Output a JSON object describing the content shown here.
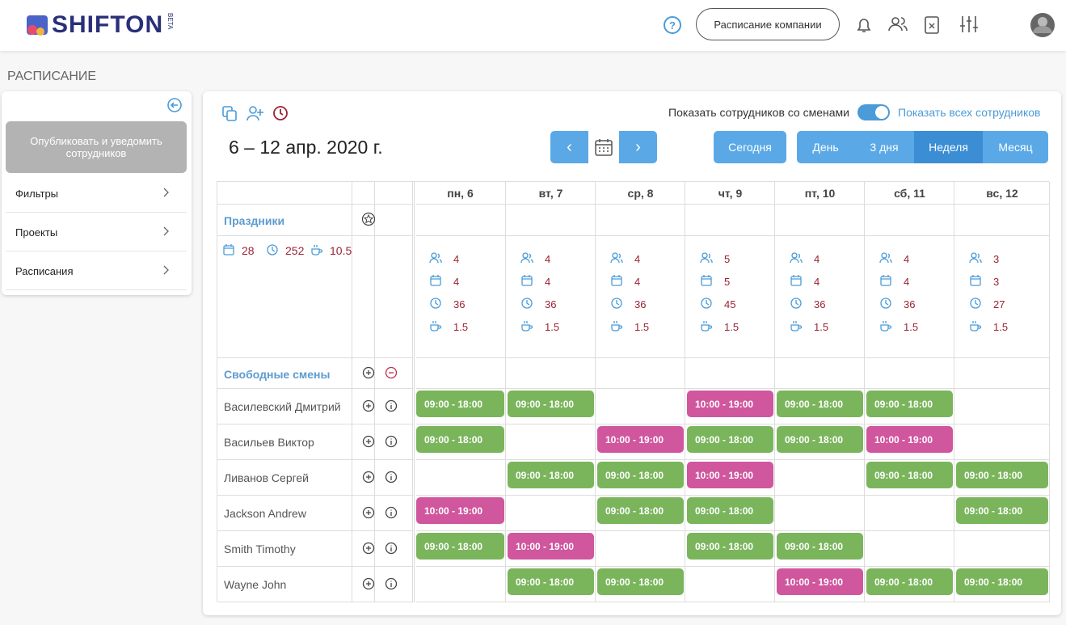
{
  "header": {
    "logo": "SHIFTON",
    "badge": "BETA",
    "company_button": "Расписание компании"
  },
  "page_title": "РАСПИСАНИЕ",
  "sidebar": {
    "publish_button": "Опубликовать и уведомить сотрудников",
    "menu": [
      "Фильтры",
      "Проекты",
      "Расписания"
    ]
  },
  "toolbar": {
    "toggle_label": "Показать сотрудников со сменами",
    "toggle_link": "Показать всех сотрудников",
    "date_range": "6 – 12 апр. 2020 г.",
    "prev": "‹",
    "next": "›",
    "today": "Сегодня",
    "views": [
      "День",
      "3 дня",
      "Неделя",
      "Месяц"
    ],
    "active_view": 2
  },
  "table": {
    "days": [
      "пн, 6",
      "вт, 7",
      "ср, 8",
      "чт, 9",
      "пт, 10",
      "сб, 11",
      "вс, 12"
    ],
    "holidays_label": "Праздники",
    "totals": {
      "shifts": 28,
      "hours": 252,
      "breaks": 10.5
    },
    "day_stats": [
      {
        "employees": 4,
        "shifts": 4,
        "hours": 36,
        "breaks": 1.5
      },
      {
        "employees": 4,
        "shifts": 4,
        "hours": 36,
        "breaks": 1.5
      },
      {
        "employees": 4,
        "shifts": 4,
        "hours": 36,
        "breaks": 1.5
      },
      {
        "employees": 5,
        "shifts": 5,
        "hours": 45,
        "breaks": 1.5
      },
      {
        "employees": 4,
        "shifts": 4,
        "hours": 36,
        "breaks": 1.5
      },
      {
        "employees": 4,
        "shifts": 4,
        "hours": 36,
        "breaks": 1.5
      },
      {
        "employees": 3,
        "shifts": 3,
        "hours": 27,
        "breaks": 1.5
      }
    ],
    "free_shifts_label": "Свободные смены",
    "employees": [
      {
        "name": "Василевский Дмитрий",
        "shifts": [
          {
            "time": "09:00 - 18:00",
            "color": "#7ab55c"
          },
          {
            "time": "09:00 - 18:00",
            "color": "#7ab55c"
          },
          null,
          {
            "time": "10:00 - 19:00",
            "color": "#d0569e"
          },
          {
            "time": "09:00 - 18:00",
            "color": "#7ab55c"
          },
          {
            "time": "09:00 - 18:00",
            "color": "#7ab55c"
          },
          null
        ]
      },
      {
        "name": "Васильев Виктор",
        "shifts": [
          {
            "time": "09:00 - 18:00",
            "color": "#7ab55c"
          },
          null,
          {
            "time": "10:00 - 19:00",
            "color": "#d0569e"
          },
          {
            "time": "09:00 - 18:00",
            "color": "#7ab55c"
          },
          {
            "time": "09:00 - 18:00",
            "color": "#7ab55c"
          },
          {
            "time": "10:00 - 19:00",
            "color": "#d0569e"
          },
          null
        ]
      },
      {
        "name": "Ливанов Сергей",
        "shifts": [
          null,
          {
            "time": "09:00 - 18:00",
            "color": "#7ab55c"
          },
          {
            "time": "09:00 - 18:00",
            "color": "#7ab55c"
          },
          {
            "time": "10:00 - 19:00",
            "color": "#d0569e"
          },
          null,
          {
            "time": "09:00 - 18:00",
            "color": "#7ab55c"
          },
          {
            "time": "09:00 - 18:00",
            "color": "#7ab55c"
          }
        ]
      },
      {
        "name": "Jackson Andrew",
        "shifts": [
          {
            "time": "10:00 - 19:00",
            "color": "#d0569e"
          },
          null,
          {
            "time": "09:00 - 18:00",
            "color": "#7ab55c"
          },
          {
            "time": "09:00 - 18:00",
            "color": "#7ab55c"
          },
          null,
          null,
          {
            "time": "09:00 - 18:00",
            "color": "#7ab55c"
          }
        ]
      },
      {
        "name": "Smith Timothy",
        "shifts": [
          {
            "time": "09:00 - 18:00",
            "color": "#7ab55c"
          },
          {
            "time": "10:00 - 19:00",
            "color": "#d0569e"
          },
          null,
          {
            "time": "09:00 - 18:00",
            "color": "#7ab55c"
          },
          {
            "time": "09:00 - 18:00",
            "color": "#7ab55c"
          },
          null,
          null
        ]
      },
      {
        "name": "Wayne John",
        "shifts": [
          null,
          {
            "time": "09:00 - 18:00",
            "color": "#7ab55c"
          },
          {
            "time": "09:00 - 18:00",
            "color": "#7ab55c"
          },
          null,
          {
            "time": "10:00 - 19:00",
            "color": "#d0569e"
          },
          {
            "time": "09:00 - 18:00",
            "color": "#7ab55c"
          },
          {
            "time": "09:00 - 18:00",
            "color": "#7ab55c"
          }
        ]
      }
    ]
  }
}
